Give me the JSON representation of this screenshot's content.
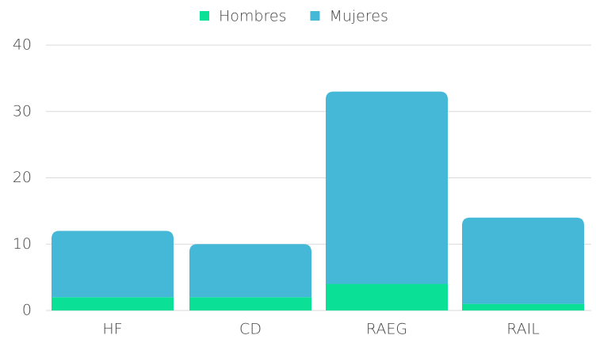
{
  "chart_data": {
    "type": "stacked_bar",
    "categories": [
      "HF",
      "CD",
      "RAEG",
      "RAIL"
    ],
    "series": [
      {
        "name": "Hombres",
        "color": "#0be097",
        "values": [
          2,
          2,
          4,
          1
        ]
      },
      {
        "name": "Mujeres",
        "color": "#45b8d8",
        "values": [
          10,
          8,
          29,
          13
        ]
      }
    ],
    "ylim": [
      0,
      40
    ],
    "yticks": [
      0,
      10,
      20,
      30,
      40
    ],
    "grid": true,
    "legend": "top"
  }
}
